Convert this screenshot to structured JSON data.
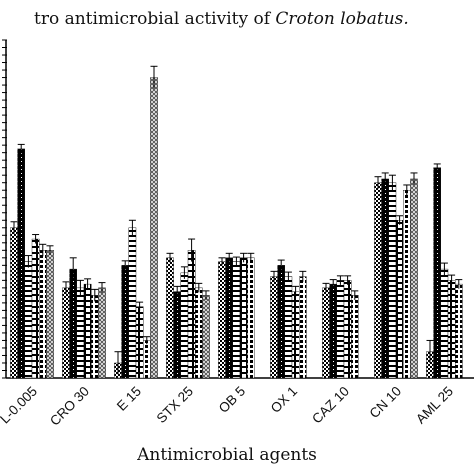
{
  "chart_data": {
    "type": "bar",
    "title_plain": "tro antimicrobial activity of ",
    "title_italic": "Croton lobatus.",
    "xlabel": "Antimicrobial agents",
    "ylabel": "",
    "categories": [
      "L-0.005",
      "CRO 30",
      "E 15",
      "STX 25",
      "OB 5",
      "OX 1",
      "CAZ 10",
      "CN 10",
      "AML 25"
    ],
    "series": [
      {
        "values": [
          20.0,
          12.0,
          2.0,
          16.0,
          15.5,
          13.5,
          12.0,
          26.0,
          3.5
        ]
      },
      {
        "values": [
          30.5,
          14.5,
          15.0,
          11.5,
          16.0,
          15.0,
          12.5,
          26.5,
          28.0
        ]
      },
      {
        "values": [
          15.5,
          12.0,
          20.0,
          14.0,
          15.5,
          13.5,
          13.0,
          26.0,
          14.5
        ]
      },
      {
        "values": [
          18.5,
          12.5,
          9.5,
          17.0,
          16.0,
          11.5,
          13.0,
          21.0,
          13.0
        ]
      },
      {
        "values": [
          17.0,
          11.0,
          5.0,
          12.0,
          16.0,
          13.5,
          11.0,
          25.0,
          12.5
        ]
      },
      {
        "values": [
          17.0,
          12.0,
          40.0,
          11.0,
          0.0,
          0.0,
          0.0,
          26.5,
          0.0
        ]
      }
    ],
    "errors": [
      [
        0.8,
        0.8,
        1.5,
        0.6,
        0.5,
        0.7,
        0.6,
        0.8,
        1.5
      ],
      [
        0.6,
        1.5,
        0.6,
        0.7,
        0.6,
        0.7,
        0.6,
        0.8,
        0.5
      ],
      [
        0.8,
        1.0,
        1.0,
        0.8,
        0.6,
        0.6,
        0.6,
        1.0,
        0.8
      ],
      [
        0.6,
        0.7,
        0.6,
        1.5,
        0.6,
        0.7,
        0.6,
        0.6,
        0.7
      ],
      [
        0.8,
        0.8,
        0.5,
        0.6,
        0.6,
        0.7,
        0.6,
        0.7,
        0.6
      ],
      [
        0.6,
        0.7,
        1.5,
        0.6,
        0,
        0,
        0,
        0.8,
        0
      ]
    ],
    "ylim": [
      0,
      45
    ],
    "grid": false,
    "legend": "none"
  }
}
